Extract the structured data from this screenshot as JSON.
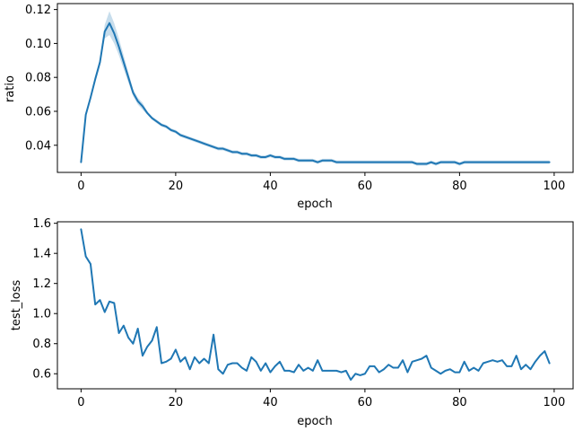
{
  "chart_data": [
    {
      "type": "line",
      "xlabel": "epoch",
      "ylabel": "ratio",
      "xlim": [
        -5,
        104
      ],
      "ylim": [
        0.024,
        0.1235
      ],
      "xticks": [
        0,
        20,
        40,
        60,
        80,
        100
      ],
      "yticks": [
        0.04,
        0.06,
        0.08,
        0.1,
        0.12
      ],
      "ytick_labels": [
        "0.04",
        "0.06",
        "0.08",
        "0.10",
        "0.12"
      ],
      "grid": false,
      "series_color": "#1f77b4",
      "band_color": "#1f77b4",
      "series": [
        {
          "x": [
            0,
            1,
            2,
            3,
            4,
            5,
            6,
            7,
            8,
            9,
            10,
            11,
            12,
            13,
            14,
            15,
            16,
            17,
            18,
            19,
            20,
            21,
            22,
            23,
            24,
            25,
            26,
            27,
            28,
            29,
            30,
            31,
            32,
            33,
            34,
            35,
            36,
            37,
            38,
            39,
            40,
            41,
            42,
            43,
            44,
            45,
            46,
            47,
            48,
            49,
            50,
            51,
            52,
            53,
            54,
            55,
            56,
            57,
            58,
            59,
            60,
            61,
            62,
            63,
            64,
            65,
            66,
            67,
            68,
            69,
            70,
            71,
            72,
            73,
            74,
            75,
            76,
            77,
            78,
            79,
            80,
            81,
            82,
            83,
            84,
            85,
            86,
            87,
            88,
            89,
            90,
            91,
            92,
            93,
            94,
            95,
            96,
            97,
            98,
            99
          ],
          "y": [
            0.03,
            0.058,
            0.068,
            0.079,
            0.089,
            0.107,
            0.112,
            0.106,
            0.098,
            0.089,
            0.08,
            0.071,
            0.066,
            0.063,
            0.059,
            0.056,
            0.054,
            0.052,
            0.051,
            0.049,
            0.048,
            0.046,
            0.045,
            0.044,
            0.043,
            0.042,
            0.041,
            0.04,
            0.039,
            0.038,
            0.038,
            0.037,
            0.036,
            0.036,
            0.035,
            0.035,
            0.034,
            0.034,
            0.033,
            0.033,
            0.034,
            0.033,
            0.033,
            0.032,
            0.032,
            0.032,
            0.031,
            0.031,
            0.031,
            0.031,
            0.03,
            0.031,
            0.031,
            0.031,
            0.03,
            0.03,
            0.03,
            0.03,
            0.03,
            0.03,
            0.03,
            0.03,
            0.03,
            0.03,
            0.03,
            0.03,
            0.03,
            0.03,
            0.03,
            0.03,
            0.03,
            0.029,
            0.029,
            0.029,
            0.03,
            0.029,
            0.03,
            0.03,
            0.03,
            0.03,
            0.029,
            0.03,
            0.03,
            0.03,
            0.03,
            0.03,
            0.03,
            0.03,
            0.03,
            0.03,
            0.03,
            0.03,
            0.03,
            0.03,
            0.03,
            0.03,
            0.03,
            0.03,
            0.03,
            0.03
          ],
          "band_lower": [
            0.03,
            0.057,
            0.067,
            0.077,
            0.087,
            0.103,
            0.105,
            0.1,
            0.093,
            0.085,
            0.077,
            0.069,
            0.064,
            0.061,
            0.058,
            0.055,
            0.053,
            0.051,
            0.05,
            0.048,
            0.047,
            0.045,
            0.044,
            0.043,
            0.042,
            0.041,
            0.04,
            0.039,
            0.038,
            0.037,
            0.037,
            0.036,
            0.035,
            0.035,
            0.034,
            0.034,
            0.033,
            0.033,
            0.032,
            0.032,
            0.033,
            0.032,
            0.032,
            0.031,
            0.031,
            0.031,
            0.03,
            0.03,
            0.03,
            0.03,
            0.029,
            0.03,
            0.03,
            0.03,
            0.029,
            0.029,
            0.029,
            0.029,
            0.029,
            0.029,
            0.029,
            0.029,
            0.029,
            0.029,
            0.029,
            0.029,
            0.029,
            0.029,
            0.029,
            0.029,
            0.029,
            0.028,
            0.028,
            0.028,
            0.029,
            0.028,
            0.029,
            0.029,
            0.029,
            0.029,
            0.028,
            0.029,
            0.029,
            0.029,
            0.029,
            0.029,
            0.029,
            0.029,
            0.029,
            0.029,
            0.029,
            0.029,
            0.029,
            0.029,
            0.029,
            0.029,
            0.029,
            0.029,
            0.029,
            0.029
          ],
          "band_upper": [
            0.03,
            0.059,
            0.069,
            0.081,
            0.091,
            0.111,
            0.119,
            0.112,
            0.103,
            0.093,
            0.083,
            0.073,
            0.068,
            0.065,
            0.06,
            0.057,
            0.055,
            0.053,
            0.052,
            0.05,
            0.049,
            0.047,
            0.046,
            0.045,
            0.044,
            0.043,
            0.042,
            0.041,
            0.04,
            0.039,
            0.039,
            0.038,
            0.037,
            0.037,
            0.036,
            0.036,
            0.035,
            0.035,
            0.034,
            0.034,
            0.035,
            0.034,
            0.034,
            0.033,
            0.033,
            0.033,
            0.032,
            0.032,
            0.032,
            0.032,
            0.031,
            0.032,
            0.032,
            0.032,
            0.031,
            0.031,
            0.031,
            0.031,
            0.031,
            0.031,
            0.031,
            0.031,
            0.031,
            0.031,
            0.031,
            0.031,
            0.031,
            0.031,
            0.031,
            0.031,
            0.031,
            0.03,
            0.03,
            0.03,
            0.031,
            0.03,
            0.031,
            0.031,
            0.031,
            0.031,
            0.03,
            0.031,
            0.031,
            0.031,
            0.031,
            0.031,
            0.031,
            0.031,
            0.031,
            0.031,
            0.031,
            0.031,
            0.031,
            0.031,
            0.031,
            0.031,
            0.031,
            0.031,
            0.031,
            0.031
          ]
        }
      ]
    },
    {
      "type": "line",
      "xlabel": "epoch",
      "ylabel": "test_loss",
      "xlim": [
        -5,
        104
      ],
      "ylim": [
        0.5,
        1.61
      ],
      "xticks": [
        0,
        20,
        40,
        60,
        80,
        100
      ],
      "yticks": [
        0.6,
        0.8,
        1.0,
        1.2,
        1.4,
        1.6
      ],
      "ytick_labels": [
        "0.6",
        "0.8",
        "1.0",
        "1.2",
        "1.4",
        "1.6"
      ],
      "grid": false,
      "series_color": "#1f77b4",
      "series": [
        {
          "x": [
            0,
            1,
            2,
            3,
            4,
            5,
            6,
            7,
            8,
            9,
            10,
            11,
            12,
            13,
            14,
            15,
            16,
            17,
            18,
            19,
            20,
            21,
            22,
            23,
            24,
            25,
            26,
            27,
            28,
            29,
            30,
            31,
            32,
            33,
            34,
            35,
            36,
            37,
            38,
            39,
            40,
            41,
            42,
            43,
            44,
            45,
            46,
            47,
            48,
            49,
            50,
            51,
            52,
            53,
            54,
            55,
            56,
            57,
            58,
            59,
            60,
            61,
            62,
            63,
            64,
            65,
            66,
            67,
            68,
            69,
            70,
            71,
            72,
            73,
            74,
            75,
            76,
            77,
            78,
            79,
            80,
            81,
            82,
            83,
            84,
            85,
            86,
            87,
            88,
            89,
            90,
            91,
            92,
            93,
            94,
            95,
            96,
            97,
            98,
            99
          ],
          "y": [
            1.56,
            1.38,
            1.33,
            1.06,
            1.09,
            1.01,
            1.08,
            1.07,
            0.87,
            0.92,
            0.84,
            0.8,
            0.9,
            0.72,
            0.78,
            0.82,
            0.91,
            0.67,
            0.68,
            0.7,
            0.76,
            0.68,
            0.71,
            0.63,
            0.71,
            0.67,
            0.7,
            0.67,
            0.86,
            0.63,
            0.6,
            0.66,
            0.67,
            0.67,
            0.64,
            0.62,
            0.71,
            0.68,
            0.62,
            0.67,
            0.61,
            0.65,
            0.68,
            0.62,
            0.62,
            0.61,
            0.66,
            0.62,
            0.64,
            0.62,
            0.69,
            0.62,
            0.62,
            0.62,
            0.62,
            0.61,
            0.62,
            0.56,
            0.6,
            0.59,
            0.6,
            0.65,
            0.65,
            0.61,
            0.63,
            0.66,
            0.64,
            0.64,
            0.69,
            0.61,
            0.68,
            0.69,
            0.7,
            0.72,
            0.64,
            0.62,
            0.6,
            0.62,
            0.63,
            0.61,
            0.61,
            0.68,
            0.62,
            0.64,
            0.62,
            0.67,
            0.68,
            0.69,
            0.68,
            0.69,
            0.65,
            0.65,
            0.72,
            0.63,
            0.66,
            0.63,
            0.68,
            0.72,
            0.75,
            0.67
          ]
        }
      ]
    }
  ]
}
